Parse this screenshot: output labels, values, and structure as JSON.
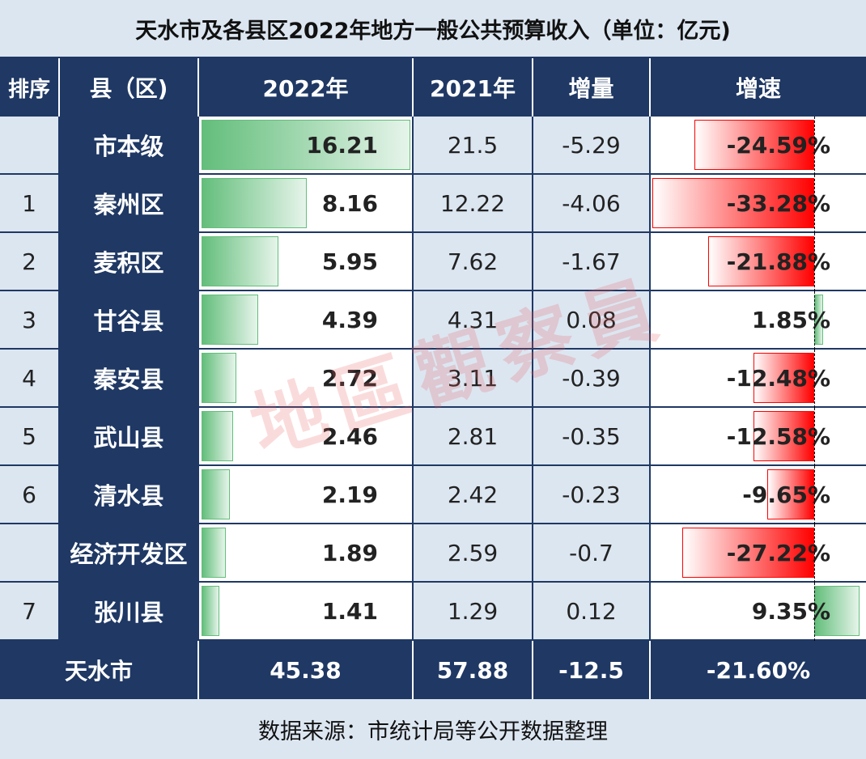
{
  "title": "天水市及各县区2022年地方一般公共预算收入（单位：亿元)",
  "headers": {
    "rank": "排序",
    "county": "县（区)",
    "y2022": "2022年",
    "y2021": "2021年",
    "increase": "增量",
    "growth": "增速"
  },
  "rows": [
    {
      "rank": "",
      "county": "市本级",
      "y2022": "16.21",
      "y2021": "21.5",
      "increase": "-5.29",
      "growth": "-24.59%"
    },
    {
      "rank": "1",
      "county": "秦州区",
      "y2022": "8.16",
      "y2021": "12.22",
      "increase": "-4.06",
      "growth": "-33.28%"
    },
    {
      "rank": "2",
      "county": "麦积区",
      "y2022": "5.95",
      "y2021": "7.62",
      "increase": "-1.67",
      "growth": "-21.88%"
    },
    {
      "rank": "3",
      "county": "甘谷县",
      "y2022": "4.39",
      "y2021": "4.31",
      "increase": "0.08",
      "growth": "1.85%"
    },
    {
      "rank": "4",
      "county": "秦安县",
      "y2022": "2.72",
      "y2021": "3.11",
      "increase": "-0.39",
      "growth": "-12.48%"
    },
    {
      "rank": "5",
      "county": "武山县",
      "y2022": "2.46",
      "y2021": "2.81",
      "increase": "-0.35",
      "growth": "-12.58%"
    },
    {
      "rank": "6",
      "county": "清水县",
      "y2022": "2.19",
      "y2021": "2.42",
      "increase": "-0.23",
      "growth": "-9.65%"
    },
    {
      "rank": "",
      "county": "经济开发区",
      "y2022": "1.89",
      "y2021": "2.59",
      "increase": "-0.7",
      "growth": "-27.22%"
    },
    {
      "rank": "7",
      "county": "张川县",
      "y2022": "1.41",
      "y2021": "1.29",
      "increase": "0.12",
      "growth": "9.35%"
    }
  ],
  "bar_values": {
    "y2022": [
      16.21,
      8.16,
      5.95,
      4.39,
      2.72,
      2.46,
      2.19,
      1.89,
      1.41
    ],
    "growth": [
      -24.59,
      -33.28,
      -21.88,
      1.85,
      -12.48,
      -12.58,
      -9.65,
      -27.22,
      9.35
    ]
  },
  "total": {
    "label": "天水市",
    "y2022": "45.38",
    "y2021": "57.88",
    "increase": "-12.5",
    "growth": "-21.60%"
  },
  "footer": "数据来源：市统计局等公开数据整理",
  "watermark": "地區觀察員",
  "colors": {
    "navy": "#1f3864",
    "light_blue": "#dce6f1",
    "bar_green": "#63be7b",
    "bar_red": "#ff0000"
  }
}
